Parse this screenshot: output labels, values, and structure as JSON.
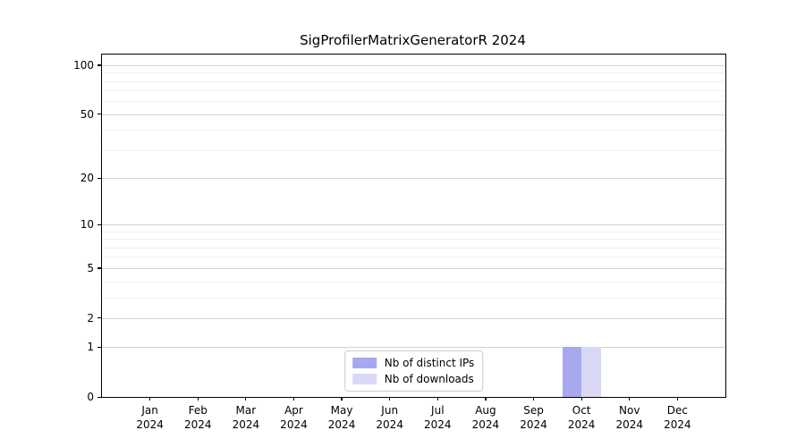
{
  "chart_data": {
    "type": "bar",
    "title": "SigProfilerMatrixGeneratorR 2024",
    "categories": [
      "Jan",
      "Feb",
      "Mar",
      "Apr",
      "May",
      "Jun",
      "Jul",
      "Aug",
      "Sep",
      "Oct",
      "Nov",
      "Dec"
    ],
    "x_year": "2024",
    "series": [
      {
        "name": "Nb of distinct IPs",
        "color": "#a8a8f0",
        "values": [
          0,
          0,
          0,
          0,
          0,
          0,
          0,
          0,
          0,
          1,
          0,
          0
        ]
      },
      {
        "name": "Nb of downloads",
        "color": "#d9d9f7",
        "values": [
          0,
          0,
          0,
          0,
          0,
          0,
          0,
          0,
          0,
          1,
          0,
          0
        ]
      }
    ],
    "y_scale": "log1p",
    "y_ticks": [
      0,
      1,
      2,
      5,
      10,
      20,
      50,
      100
    ],
    "y_minor_ticks": [
      3,
      4,
      6,
      7,
      8,
      9,
      30,
      40,
      60,
      70,
      80,
      90
    ],
    "ylim": [
      0,
      116
    ],
    "grid": "horizontal",
    "legend_position": "lower center",
    "xlabel": "",
    "ylabel": ""
  }
}
